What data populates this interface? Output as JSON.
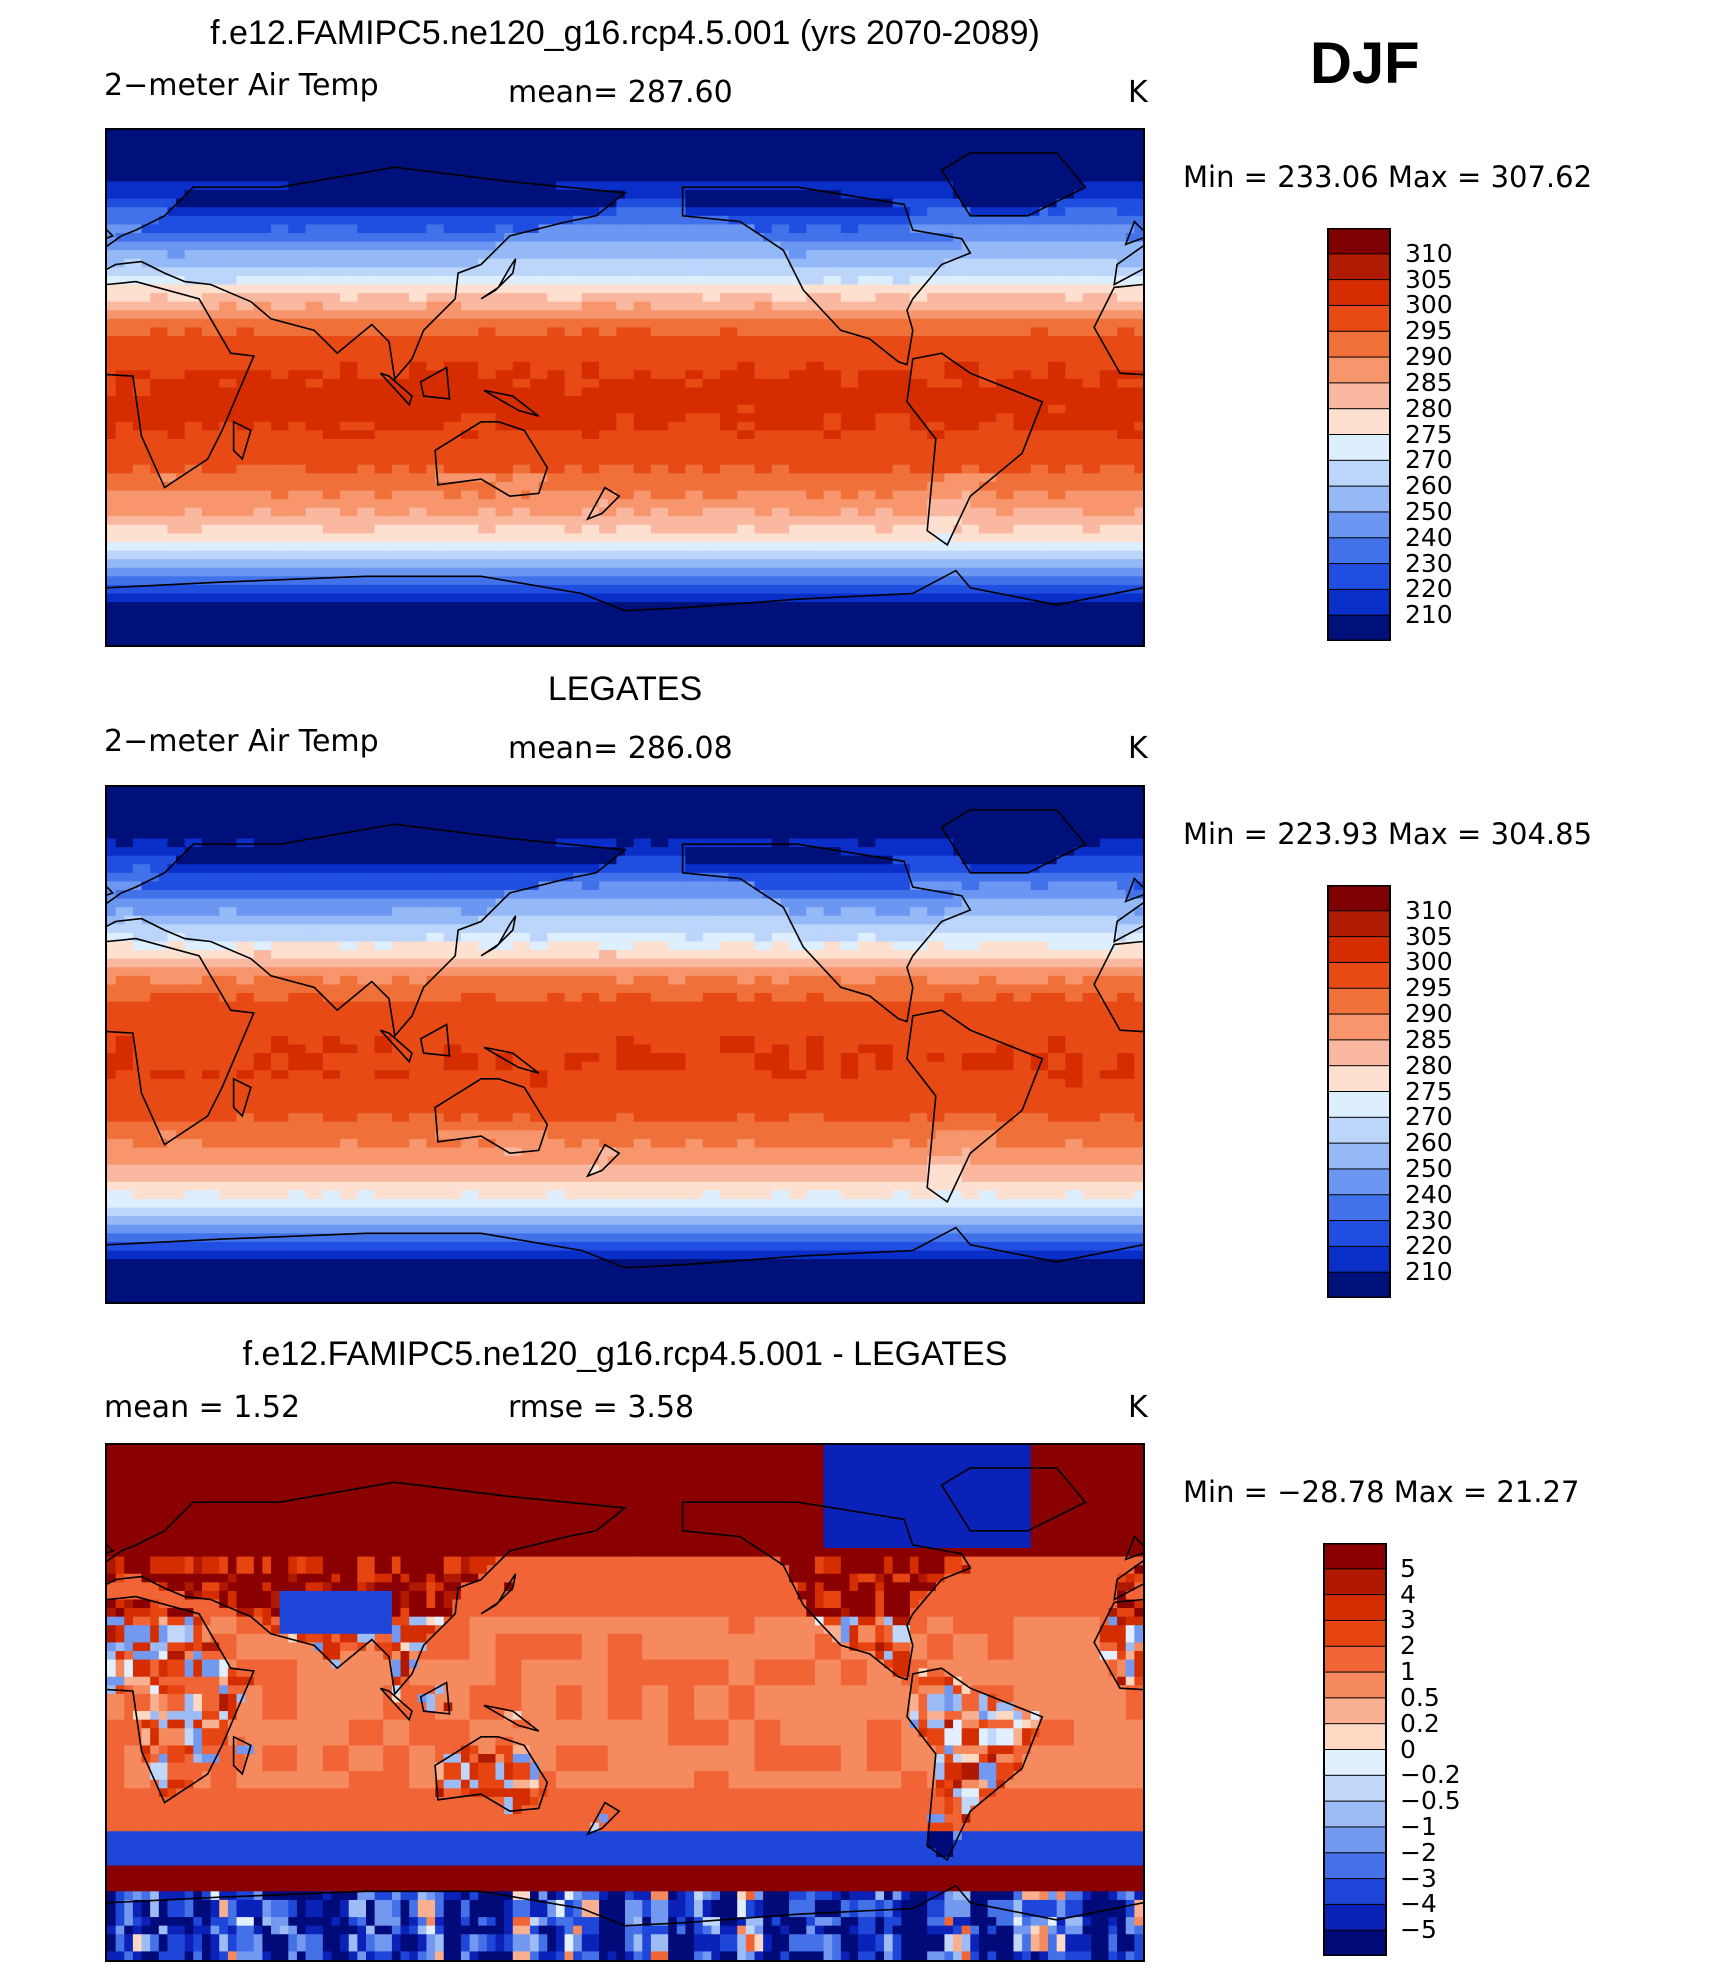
{
  "season": "DJF",
  "panels": [
    {
      "title": "f.e12.FAMIPC5.ne120_g16.rcp4.5.001 (yrs 2070-2089)",
      "left_label": "2−meter Air Temp",
      "center_label": "mean=  287.60",
      "units": "K",
      "minmax": "Min  =  233.06  Max  =  307.62",
      "colorbar": {
        "levels": [
          "310",
          "305",
          "300",
          "295",
          "290",
          "285",
          "280",
          "275",
          "270",
          "260",
          "250",
          "240",
          "230",
          "220",
          "210"
        ],
        "colors": [
          "#7f0000",
          "#b01a00",
          "#d52d00",
          "#e84a15",
          "#f0703a",
          "#f7956c",
          "#fbb8a0",
          "#fde0cf",
          "#ddeeff",
          "#bcd5fb",
          "#95b8f7",
          "#6b96f2",
          "#4172ea",
          "#1f4ee0",
          "#0a2ec8",
          "#00107a"
        ]
      },
      "field": "model"
    },
    {
      "title": "LEGATES",
      "left_label": "2−meter Air Temp",
      "center_label": "mean=  286.08",
      "units": "K",
      "minmax": "Min  =  223.93  Max  =  304.85",
      "colorbar": {
        "levels": [
          "310",
          "305",
          "300",
          "295",
          "290",
          "285",
          "280",
          "275",
          "270",
          "260",
          "250",
          "240",
          "230",
          "220",
          "210"
        ],
        "colors": [
          "#7f0000",
          "#b01a00",
          "#d52d00",
          "#e84a15",
          "#f0703a",
          "#f7956c",
          "#fbb8a0",
          "#fde0cf",
          "#ddeeff",
          "#bcd5fb",
          "#95b8f7",
          "#6b96f2",
          "#4172ea",
          "#1f4ee0",
          "#0a2ec8",
          "#00107a"
        ]
      },
      "field": "obs"
    },
    {
      "title": "f.e12.FAMIPC5.ne120_g16.rcp4.5.001 - LEGATES",
      "left_label": "mean  =      1.52",
      "center_label": "rmse  =      3.58",
      "units": "K",
      "minmax": "Min  =  −28.78  Max  =    21.27",
      "colorbar": {
        "levels": [
          "5",
          "4",
          "3",
          "2",
          "1",
          "0.5",
          "0.2",
          "0",
          "−0.2",
          "−0.5",
          "−1",
          "−2",
          "−3",
          "−4",
          "−5"
        ],
        "colors": [
          "#8a0000",
          "#b01800",
          "#d42e00",
          "#e64512",
          "#f06436",
          "#f58a5e",
          "#f9b090",
          "#fdd9c3",
          "#e2efff",
          "#c2d8fb",
          "#9dbcf6",
          "#7298f0",
          "#4470e8",
          "#1e46d8",
          "#0a22b8",
          "#000a78"
        ]
      },
      "field": "diff"
    }
  ]
}
